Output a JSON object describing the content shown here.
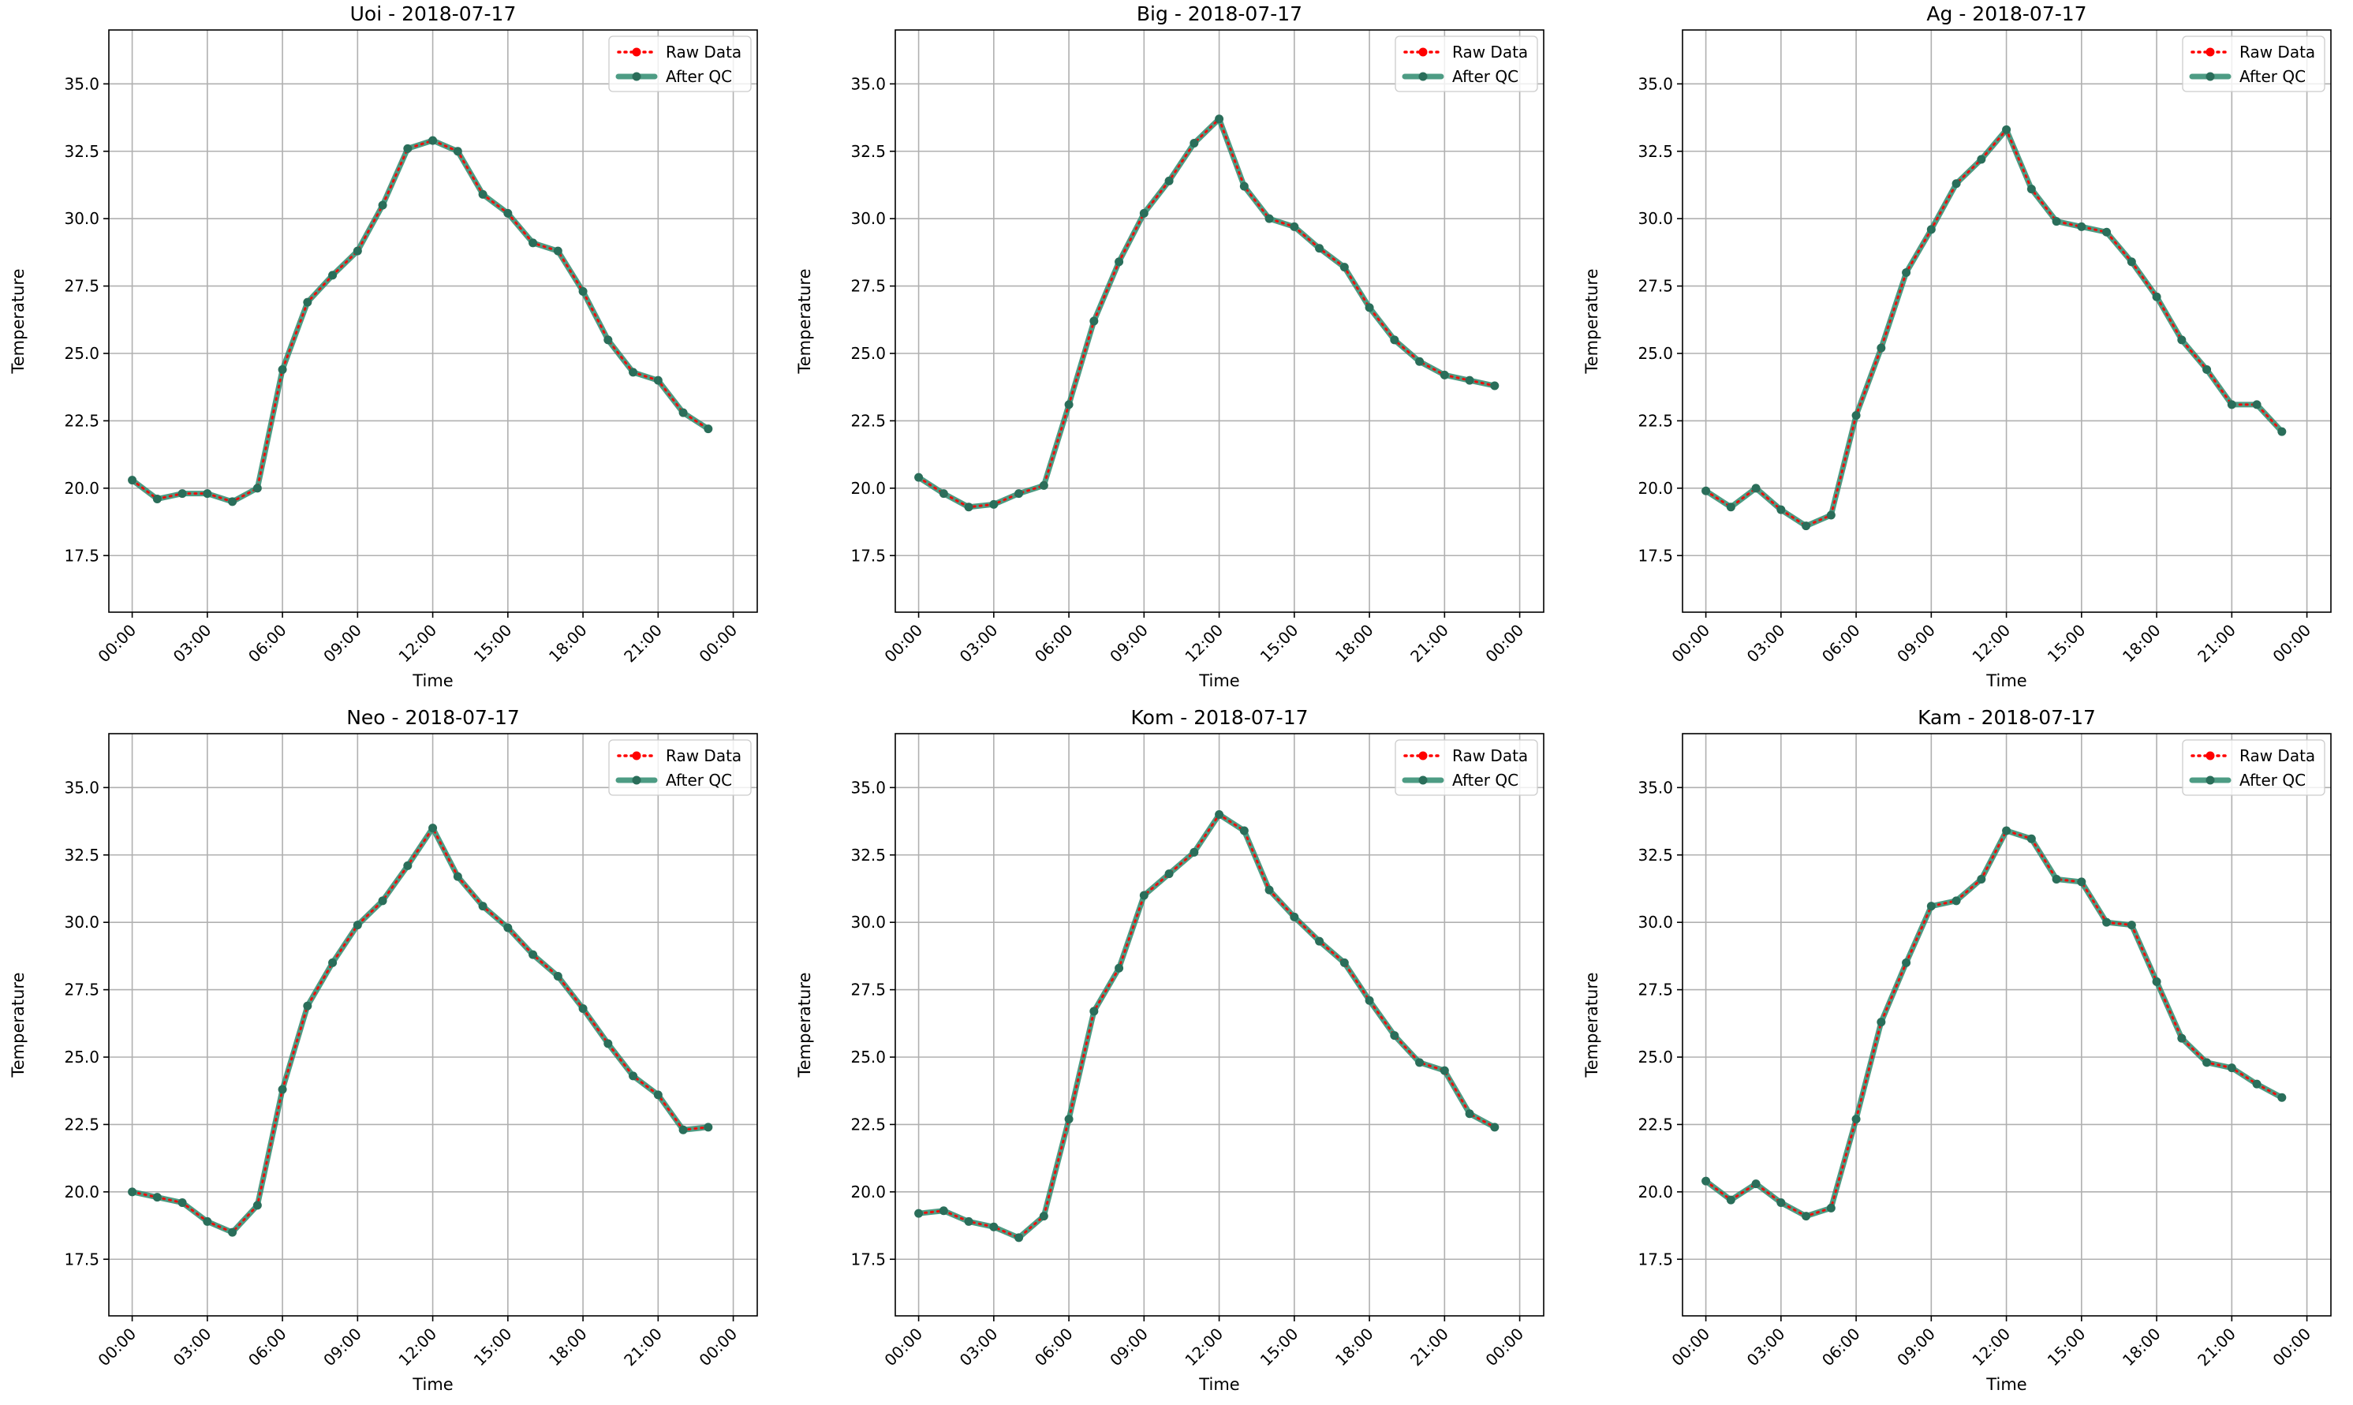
{
  "chart_data": [
    {
      "type": "line",
      "title": "Uoi - 2018-07-17",
      "xlabel": "Time",
      "ylabel": "Temperature",
      "x": [
        "00:00",
        "01:00",
        "02:00",
        "03:00",
        "04:00",
        "05:00",
        "06:00",
        "07:00",
        "08:00",
        "09:00",
        "10:00",
        "11:00",
        "12:00",
        "13:00",
        "14:00",
        "15:00",
        "16:00",
        "17:00",
        "18:00",
        "19:00",
        "20:00",
        "21:00",
        "22:00",
        "23:00"
      ],
      "x_ticks": [
        "00:00",
        "03:00",
        "06:00",
        "09:00",
        "12:00",
        "15:00",
        "18:00",
        "21:00",
        "00:00"
      ],
      "y_ticks": [
        "17.5",
        "20.0",
        "22.5",
        "25.0",
        "27.5",
        "30.0",
        "32.5",
        "35.0"
      ],
      "ylim": [
        15.4,
        37.0
      ],
      "grid": true,
      "legend_position": "top-right",
      "series": [
        {
          "name": "Raw Data",
          "color": "#ff0000",
          "values": [
            20.3,
            19.6,
            19.8,
            19.8,
            19.5,
            20.0,
            24.4,
            26.9,
            27.9,
            28.8,
            30.5,
            32.6,
            32.9,
            32.5,
            30.9,
            30.2,
            29.1,
            28.8,
            27.3,
            25.5,
            24.3,
            24.0,
            22.8,
            22.2
          ]
        },
        {
          "name": "After QC",
          "color": "#2e8b6e",
          "values": [
            20.3,
            19.6,
            19.8,
            19.8,
            19.5,
            20.0,
            24.4,
            26.9,
            27.9,
            28.8,
            30.5,
            32.6,
            32.9,
            32.5,
            30.9,
            30.2,
            29.1,
            28.8,
            27.3,
            25.5,
            24.3,
            24.0,
            22.8,
            22.2
          ]
        }
      ]
    },
    {
      "type": "line",
      "title": "Big - 2018-07-17",
      "xlabel": "Time",
      "ylabel": "Temperature",
      "x": [
        "00:00",
        "01:00",
        "02:00",
        "03:00",
        "04:00",
        "05:00",
        "06:00",
        "07:00",
        "08:00",
        "09:00",
        "10:00",
        "11:00",
        "12:00",
        "13:00",
        "14:00",
        "15:00",
        "16:00",
        "17:00",
        "18:00",
        "19:00",
        "20:00",
        "21:00",
        "22:00",
        "23:00"
      ],
      "x_ticks": [
        "00:00",
        "03:00",
        "06:00",
        "09:00",
        "12:00",
        "15:00",
        "18:00",
        "21:00",
        "00:00"
      ],
      "y_ticks": [
        "17.5",
        "20.0",
        "22.5",
        "25.0",
        "27.5",
        "30.0",
        "32.5",
        "35.0"
      ],
      "ylim": [
        15.4,
        37.0
      ],
      "grid": true,
      "legend_position": "top-right",
      "series": [
        {
          "name": "Raw Data",
          "color": "#ff0000",
          "values": [
            20.4,
            19.8,
            19.3,
            19.4,
            19.8,
            20.1,
            23.1,
            26.2,
            28.4,
            30.2,
            31.4,
            32.8,
            33.7,
            31.2,
            30.0,
            29.7,
            28.9,
            28.2,
            26.7,
            25.5,
            24.7,
            24.2,
            24.0,
            23.8
          ]
        },
        {
          "name": "After QC",
          "color": "#2e8b6e",
          "values": [
            20.4,
            19.8,
            19.3,
            19.4,
            19.8,
            20.1,
            23.1,
            26.2,
            28.4,
            30.2,
            31.4,
            32.8,
            33.7,
            31.2,
            30.0,
            29.7,
            28.9,
            28.2,
            26.7,
            25.5,
            24.7,
            24.2,
            24.0,
            23.8
          ]
        }
      ]
    },
    {
      "type": "line",
      "title": "Ag - 2018-07-17",
      "xlabel": "Time",
      "ylabel": "Temperature",
      "x": [
        "00:00",
        "01:00",
        "02:00",
        "03:00",
        "04:00",
        "05:00",
        "06:00",
        "07:00",
        "08:00",
        "09:00",
        "10:00",
        "11:00",
        "12:00",
        "13:00",
        "14:00",
        "15:00",
        "16:00",
        "17:00",
        "18:00",
        "19:00",
        "20:00",
        "21:00",
        "22:00",
        "23:00"
      ],
      "x_ticks": [
        "00:00",
        "03:00",
        "06:00",
        "09:00",
        "12:00",
        "15:00",
        "18:00",
        "21:00",
        "00:00"
      ],
      "y_ticks": [
        "17.5",
        "20.0",
        "22.5",
        "25.0",
        "27.5",
        "30.0",
        "32.5",
        "35.0"
      ],
      "ylim": [
        15.4,
        37.0
      ],
      "grid": true,
      "legend_position": "top-right",
      "series": [
        {
          "name": "Raw Data",
          "color": "#ff0000",
          "values": [
            19.9,
            19.3,
            20.0,
            19.2,
            18.6,
            19.0,
            22.7,
            25.2,
            28.0,
            29.6,
            31.3,
            32.2,
            33.3,
            31.1,
            29.9,
            29.7,
            29.5,
            28.4,
            27.1,
            25.5,
            24.4,
            23.1,
            23.1,
            22.1
          ]
        },
        {
          "name": "After QC",
          "color": "#2e8b6e",
          "values": [
            19.9,
            19.3,
            20.0,
            19.2,
            18.6,
            19.0,
            22.7,
            25.2,
            28.0,
            29.6,
            31.3,
            32.2,
            33.3,
            31.1,
            29.9,
            29.7,
            29.5,
            28.4,
            27.1,
            25.5,
            24.4,
            23.1,
            23.1,
            22.1
          ]
        }
      ]
    },
    {
      "type": "line",
      "title": "Neo - 2018-07-17",
      "xlabel": "Time",
      "ylabel": "Temperature",
      "x": [
        "00:00",
        "01:00",
        "02:00",
        "03:00",
        "04:00",
        "05:00",
        "06:00",
        "07:00",
        "08:00",
        "09:00",
        "10:00",
        "11:00",
        "12:00",
        "13:00",
        "14:00",
        "15:00",
        "16:00",
        "17:00",
        "18:00",
        "19:00",
        "20:00",
        "21:00",
        "22:00",
        "23:00"
      ],
      "x_ticks": [
        "00:00",
        "03:00",
        "06:00",
        "09:00",
        "12:00",
        "15:00",
        "18:00",
        "21:00",
        "00:00"
      ],
      "y_ticks": [
        "17.5",
        "20.0",
        "22.5",
        "25.0",
        "27.5",
        "30.0",
        "32.5",
        "35.0"
      ],
      "ylim": [
        15.4,
        37.0
      ],
      "grid": true,
      "legend_position": "top-right",
      "series": [
        {
          "name": "Raw Data",
          "color": "#ff0000",
          "values": [
            20.0,
            19.8,
            19.6,
            18.9,
            18.5,
            19.5,
            23.8,
            26.9,
            28.5,
            29.9,
            30.8,
            32.1,
            33.5,
            31.7,
            30.6,
            29.8,
            28.8,
            28.0,
            26.8,
            25.5,
            24.3,
            23.6,
            22.3,
            22.4
          ]
        },
        {
          "name": "After QC",
          "color": "#2e8b6e",
          "values": [
            20.0,
            19.8,
            19.6,
            18.9,
            18.5,
            19.5,
            23.8,
            26.9,
            28.5,
            29.9,
            30.8,
            32.1,
            33.5,
            31.7,
            30.6,
            29.8,
            28.8,
            28.0,
            26.8,
            25.5,
            24.3,
            23.6,
            22.3,
            22.4
          ]
        }
      ]
    },
    {
      "type": "line",
      "title": "Kom - 2018-07-17",
      "xlabel": "Time",
      "ylabel": "Temperature",
      "x": [
        "00:00",
        "01:00",
        "02:00",
        "03:00",
        "04:00",
        "05:00",
        "06:00",
        "07:00",
        "08:00",
        "09:00",
        "10:00",
        "11:00",
        "12:00",
        "13:00",
        "14:00",
        "15:00",
        "16:00",
        "17:00",
        "18:00",
        "19:00",
        "20:00",
        "21:00",
        "22:00",
        "23:00"
      ],
      "x_ticks": [
        "00:00",
        "03:00",
        "06:00",
        "09:00",
        "12:00",
        "15:00",
        "18:00",
        "21:00",
        "00:00"
      ],
      "y_ticks": [
        "17.5",
        "20.0",
        "22.5",
        "25.0",
        "27.5",
        "30.0",
        "32.5",
        "35.0"
      ],
      "ylim": [
        15.4,
        37.0
      ],
      "grid": true,
      "legend_position": "top-right",
      "series": [
        {
          "name": "Raw Data",
          "color": "#ff0000",
          "values": [
            19.2,
            19.3,
            18.9,
            18.7,
            18.3,
            19.1,
            22.7,
            26.7,
            28.3,
            31.0,
            31.8,
            32.6,
            34.0,
            33.4,
            31.2,
            30.2,
            29.3,
            28.5,
            27.1,
            25.8,
            24.8,
            24.5,
            22.9,
            22.4
          ]
        },
        {
          "name": "After QC",
          "color": "#2e8b6e",
          "values": [
            19.2,
            19.3,
            18.9,
            18.7,
            18.3,
            19.1,
            22.7,
            26.7,
            28.3,
            31.0,
            31.8,
            32.6,
            34.0,
            33.4,
            31.2,
            30.2,
            29.3,
            28.5,
            27.1,
            25.8,
            24.8,
            24.5,
            22.9,
            22.4
          ]
        }
      ]
    },
    {
      "type": "line",
      "title": "Kam - 2018-07-17",
      "xlabel": "Time",
      "ylabel": "Temperature",
      "x": [
        "00:00",
        "01:00",
        "02:00",
        "03:00",
        "04:00",
        "05:00",
        "06:00",
        "07:00",
        "08:00",
        "09:00",
        "10:00",
        "11:00",
        "12:00",
        "13:00",
        "14:00",
        "15:00",
        "16:00",
        "17:00",
        "18:00",
        "19:00",
        "20:00",
        "21:00",
        "22:00",
        "23:00"
      ],
      "x_ticks": [
        "00:00",
        "03:00",
        "06:00",
        "09:00",
        "12:00",
        "15:00",
        "18:00",
        "21:00",
        "00:00"
      ],
      "y_ticks": [
        "17.5",
        "20.0",
        "22.5",
        "25.0",
        "27.5",
        "30.0",
        "32.5",
        "35.0"
      ],
      "ylim": [
        15.4,
        37.0
      ],
      "grid": true,
      "legend_position": "top-right",
      "series": [
        {
          "name": "Raw Data",
          "color": "#ff0000",
          "values": [
            20.4,
            19.7,
            20.3,
            19.6,
            19.1,
            19.4,
            22.7,
            26.3,
            28.5,
            30.6,
            30.8,
            31.6,
            33.4,
            33.1,
            31.6,
            31.5,
            30.0,
            29.9,
            27.8,
            25.7,
            24.8,
            24.6,
            24.0,
            23.5
          ]
        },
        {
          "name": "After QC",
          "color": "#2e8b6e",
          "values": [
            20.4,
            19.7,
            20.3,
            19.6,
            19.1,
            19.4,
            22.7,
            26.3,
            28.5,
            30.6,
            30.8,
            31.6,
            33.4,
            33.1,
            31.6,
            31.5,
            30.0,
            29.9,
            27.8,
            25.7,
            24.8,
            24.6,
            24.0,
            23.5
          ]
        }
      ]
    }
  ]
}
